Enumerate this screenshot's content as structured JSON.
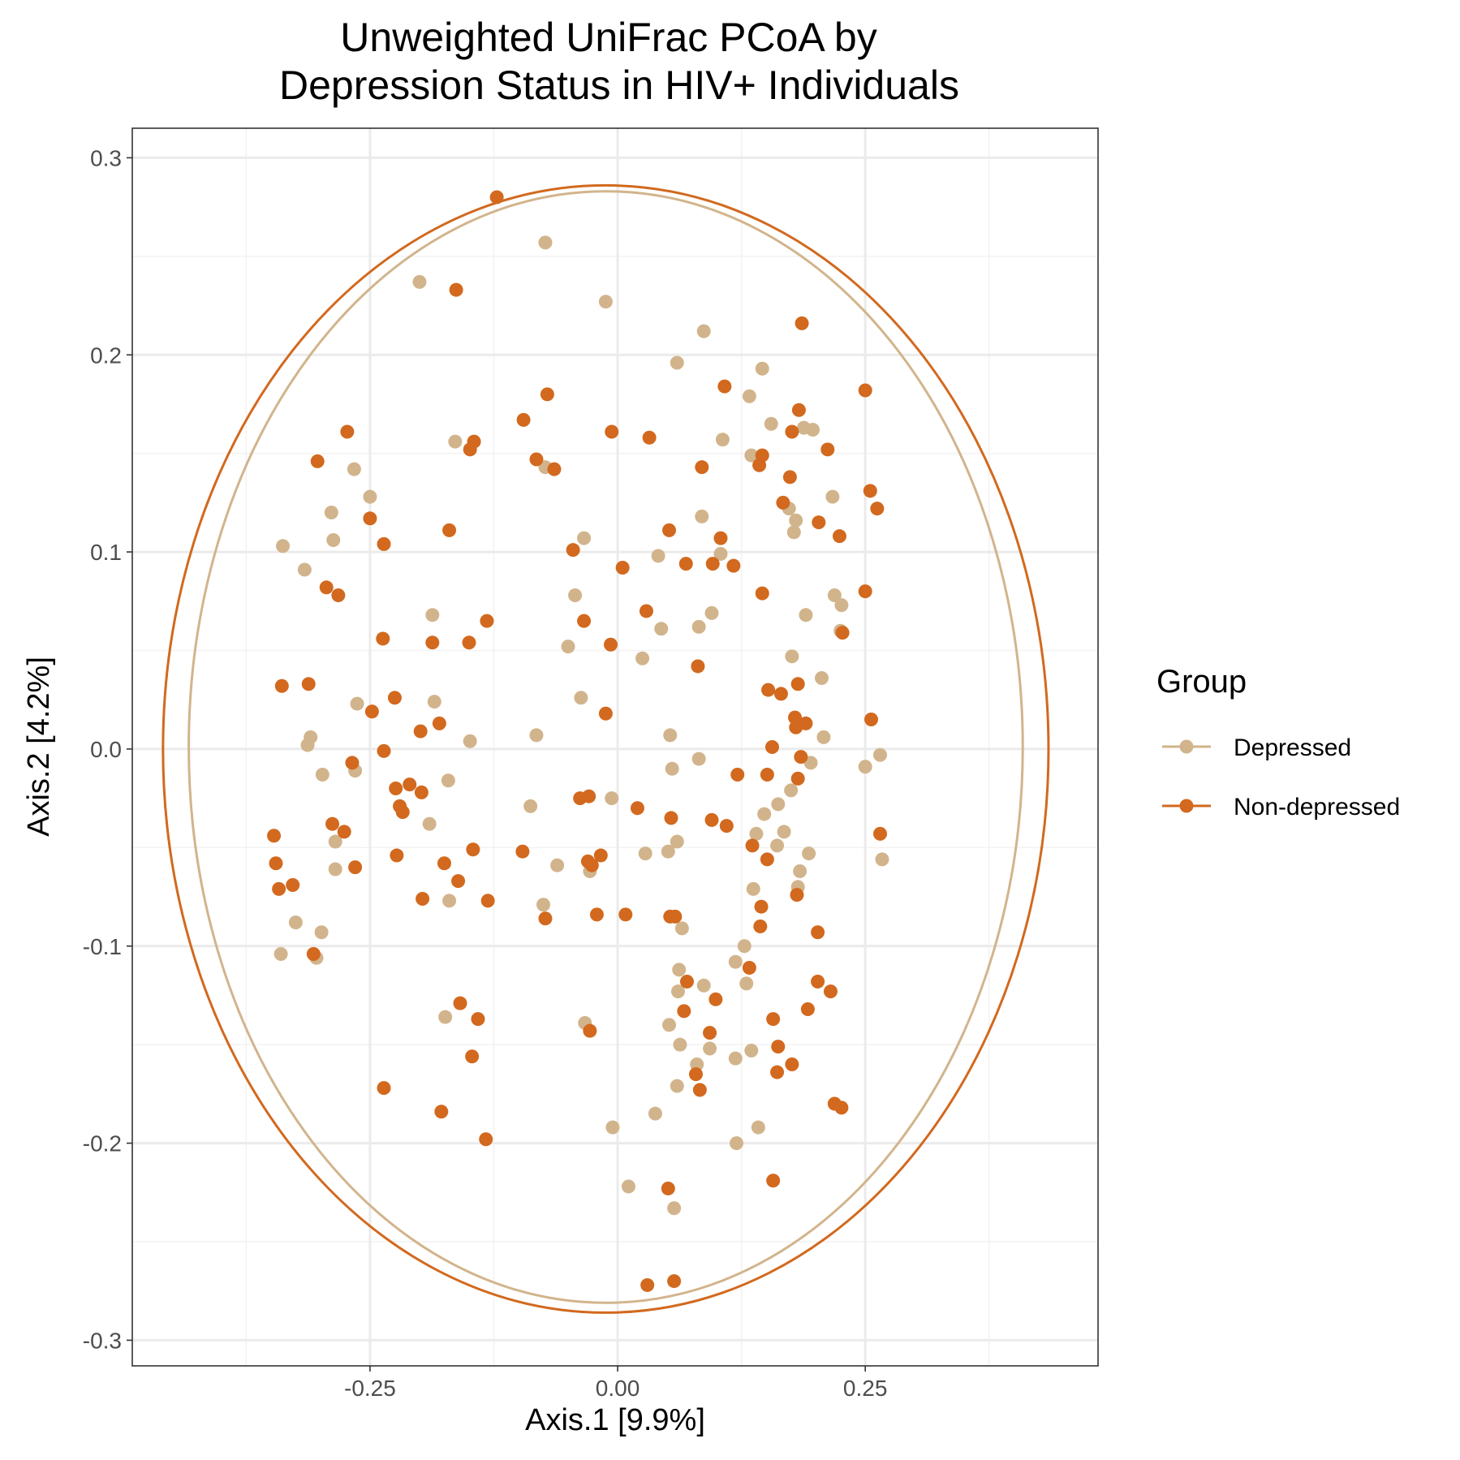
{
  "chart_data": {
    "type": "scatter",
    "title_lines": [
      "Unweighted UniFrac PCoA by",
      "Depression Status in HIV+ Individuals"
    ],
    "xlabel": "Axis.1   [9.9%]",
    "ylabel": "Axis.2   [4.2%]",
    "xlim": [
      -0.49,
      0.485
    ],
    "ylim": [
      -0.313,
      0.315
    ],
    "x_ticks": [
      -0.25,
      0.0,
      0.25
    ],
    "x_tick_labels": [
      "-0.25",
      "0.00",
      "0.25"
    ],
    "y_ticks": [
      -0.3,
      -0.2,
      -0.1,
      0.0,
      0.1,
      0.2,
      0.3
    ],
    "y_tick_labels": [
      "-0.3",
      "-0.2",
      "-0.1",
      "0.0",
      "0.1",
      "0.2",
      "0.3"
    ],
    "x_minor_ticks": [
      -0.375,
      -0.125,
      0.125,
      0.375
    ],
    "y_minor_ticks": [
      -0.25,
      -0.15,
      -0.05,
      0.05,
      0.15,
      0.25
    ],
    "grid": true,
    "legend": {
      "title": "Group",
      "position": "right",
      "entries": [
        "Depressed",
        "Non-depressed"
      ]
    },
    "series": [
      {
        "name": "Depressed",
        "color": "#D2B48C",
        "ellipse": {
          "cx": -0.012,
          "cy": 0.001,
          "rx": 0.421,
          "ry": 0.282
        },
        "points": [
          [
            -0.073,
            0.257
          ],
          [
            -0.2,
            0.237
          ],
          [
            -0.012,
            0.227
          ],
          [
            0.087,
            0.212
          ],
          [
            0.06,
            0.196
          ],
          [
            0.146,
            0.193
          ],
          [
            0.133,
            0.179
          ],
          [
            0.155,
            0.165
          ],
          [
            0.188,
            0.163
          ],
          [
            0.197,
            0.162
          ],
          [
            -0.164,
            0.156
          ],
          [
            0.106,
            0.157
          ],
          [
            0.135,
            0.149
          ],
          [
            -0.073,
            0.143
          ],
          [
            -0.266,
            0.142
          ],
          [
            0.173,
            0.122
          ],
          [
            0.18,
            0.116
          ],
          [
            -0.25,
            0.128
          ],
          [
            0.217,
            0.128
          ],
          [
            -0.289,
            0.12
          ],
          [
            0.085,
            0.118
          ],
          [
            -0.338,
            0.103
          ],
          [
            -0.287,
            0.106
          ],
          [
            0.178,
            0.11
          ],
          [
            -0.034,
            0.107
          ],
          [
            -0.316,
            0.091
          ],
          [
            0.041,
            0.098
          ],
          [
            0.104,
            0.099
          ],
          [
            -0.043,
            0.078
          ],
          [
            0.219,
            0.078
          ],
          [
            0.226,
            0.073
          ],
          [
            -0.187,
            0.068
          ],
          [
            0.095,
            0.069
          ],
          [
            0.19,
            0.068
          ],
          [
            0.044,
            0.061
          ],
          [
            0.082,
            0.062
          ],
          [
            0.225,
            0.06
          ],
          [
            -0.05,
            0.052
          ],
          [
            0.025,
            0.046
          ],
          [
            0.176,
            0.047
          ],
          [
            0.206,
            0.036
          ],
          [
            -0.037,
            0.026
          ],
          [
            -0.185,
            0.024
          ],
          [
            -0.263,
            0.023
          ],
          [
            -0.31,
            0.006
          ],
          [
            0.053,
            0.007
          ],
          [
            0.208,
            0.006
          ],
          [
            -0.082,
            0.007
          ],
          [
            -0.149,
            0.004
          ],
          [
            -0.313,
            0.002
          ],
          [
            0.265,
            -0.003
          ],
          [
            0.082,
            -0.005
          ],
          [
            0.195,
            -0.007
          ],
          [
            0.055,
            -0.01
          ],
          [
            0.25,
            -0.009
          ],
          [
            -0.265,
            -0.011
          ],
          [
            -0.298,
            -0.013
          ],
          [
            -0.171,
            -0.016
          ],
          [
            0.175,
            -0.021
          ],
          [
            -0.006,
            -0.025
          ],
          [
            -0.088,
            -0.029
          ],
          [
            0.162,
            -0.028
          ],
          [
            0.148,
            -0.033
          ],
          [
            -0.19,
            -0.038
          ],
          [
            0.168,
            -0.042
          ],
          [
            0.14,
            -0.043
          ],
          [
            -0.285,
            -0.047
          ],
          [
            0.06,
            -0.047
          ],
          [
            0.161,
            -0.049
          ],
          [
            0.193,
            -0.053
          ],
          [
            0.028,
            -0.053
          ],
          [
            0.051,
            -0.052
          ],
          [
            0.267,
            -0.056
          ],
          [
            -0.061,
            -0.059
          ],
          [
            -0.028,
            -0.062
          ],
          [
            0.184,
            -0.062
          ],
          [
            -0.285,
            -0.061
          ],
          [
            0.137,
            -0.071
          ],
          [
            0.182,
            -0.07
          ],
          [
            -0.17,
            -0.077
          ],
          [
            -0.075,
            -0.079
          ],
          [
            -0.325,
            -0.088
          ],
          [
            0.065,
            -0.091
          ],
          [
            -0.299,
            -0.093
          ],
          [
            0.128,
            -0.1
          ],
          [
            -0.34,
            -0.104
          ],
          [
            -0.304,
            -0.106
          ],
          [
            0.119,
            -0.108
          ],
          [
            0.062,
            -0.112
          ],
          [
            0.13,
            -0.119
          ],
          [
            0.087,
            -0.12
          ],
          [
            0.061,
            -0.123
          ],
          [
            -0.174,
            -0.136
          ],
          [
            -0.033,
            -0.139
          ],
          [
            0.052,
            -0.14
          ],
          [
            0.063,
            -0.15
          ],
          [
            0.093,
            -0.152
          ],
          [
            0.135,
            -0.153
          ],
          [
            0.119,
            -0.157
          ],
          [
            0.08,
            -0.16
          ],
          [
            0.06,
            -0.171
          ],
          [
            0.038,
            -0.185
          ],
          [
            -0.005,
            -0.192
          ],
          [
            0.142,
            -0.192
          ],
          [
            0.12,
            -0.2
          ],
          [
            0.011,
            -0.222
          ],
          [
            0.057,
            -0.233
          ]
        ]
      },
      {
        "name": "Non-depressed",
        "color": "#D2691E",
        "ellipse": {
          "cx": -0.012,
          "cy": 0.0,
          "rx": 0.447,
          "ry": 0.286
        },
        "points": [
          [
            -0.122,
            0.28
          ],
          [
            -0.163,
            0.233
          ],
          [
            0.186,
            0.216
          ],
          [
            0.25,
            0.182
          ],
          [
            0.108,
            0.184
          ],
          [
            -0.071,
            0.18
          ],
          [
            -0.095,
            0.167
          ],
          [
            -0.006,
            0.161
          ],
          [
            0.032,
            0.158
          ],
          [
            -0.273,
            0.161
          ],
          [
            0.183,
            0.172
          ],
          [
            0.176,
            0.161
          ],
          [
            -0.145,
            0.156
          ],
          [
            -0.149,
            0.152
          ],
          [
            0.146,
            0.149
          ],
          [
            0.212,
            0.152
          ],
          [
            -0.303,
            0.146
          ],
          [
            -0.082,
            0.147
          ],
          [
            -0.064,
            0.142
          ],
          [
            0.085,
            0.143
          ],
          [
            0.143,
            0.144
          ],
          [
            0.174,
            0.138
          ],
          [
            0.255,
            0.131
          ],
          [
            0.167,
            0.125
          ],
          [
            0.262,
            0.122
          ],
          [
            -0.25,
            0.117
          ],
          [
            0.203,
            0.115
          ],
          [
            0.052,
            0.111
          ],
          [
            -0.17,
            0.111
          ],
          [
            0.224,
            0.108
          ],
          [
            0.104,
            0.107
          ],
          [
            -0.236,
            0.104
          ],
          [
            -0.045,
            0.101
          ],
          [
            0.069,
            0.094
          ],
          [
            0.096,
            0.094
          ],
          [
            0.117,
            0.093
          ],
          [
            0.005,
            0.092
          ],
          [
            -0.294,
            0.082
          ],
          [
            -0.282,
            0.078
          ],
          [
            0.146,
            0.079
          ],
          [
            0.25,
            0.08
          ],
          [
            0.029,
            0.07
          ],
          [
            -0.132,
            0.065
          ],
          [
            -0.034,
            0.065
          ],
          [
            0.227,
            0.059
          ],
          [
            -0.237,
            0.056
          ],
          [
            -0.187,
            0.054
          ],
          [
            -0.15,
            0.054
          ],
          [
            -0.007,
            0.053
          ],
          [
            0.081,
            0.042
          ],
          [
            -0.339,
            0.032
          ],
          [
            -0.312,
            0.033
          ],
          [
            0.152,
            0.03
          ],
          [
            0.165,
            0.028
          ],
          [
            0.182,
            0.033
          ],
          [
            -0.225,
            0.026
          ],
          [
            -0.248,
            0.019
          ],
          [
            -0.012,
            0.018
          ],
          [
            0.256,
            0.015
          ],
          [
            0.179,
            0.016
          ],
          [
            0.18,
            0.011
          ],
          [
            0.19,
            0.013
          ],
          [
            -0.18,
            0.013
          ],
          [
            -0.199,
            0.009
          ],
          [
            0.156,
            0.001
          ],
          [
            -0.236,
            -0.001
          ],
          [
            0.185,
            -0.004
          ],
          [
            -0.268,
            -0.007
          ],
          [
            0.121,
            -0.013
          ],
          [
            0.151,
            -0.013
          ],
          [
            0.182,
            -0.015
          ],
          [
            -0.224,
            -0.02
          ],
          [
            -0.21,
            -0.018
          ],
          [
            -0.198,
            -0.022
          ],
          [
            -0.038,
            -0.025
          ],
          [
            -0.029,
            -0.024
          ],
          [
            -0.22,
            -0.029
          ],
          [
            -0.217,
            -0.032
          ],
          [
            0.02,
            -0.03
          ],
          [
            0.054,
            -0.035
          ],
          [
            0.095,
            -0.036
          ],
          [
            0.11,
            -0.039
          ],
          [
            -0.288,
            -0.038
          ],
          [
            -0.276,
            -0.042
          ],
          [
            -0.347,
            -0.044
          ],
          [
            0.265,
            -0.043
          ],
          [
            0.136,
            -0.049
          ],
          [
            -0.096,
            -0.052
          ],
          [
            -0.146,
            -0.051
          ],
          [
            0.151,
            -0.056
          ],
          [
            -0.223,
            -0.054
          ],
          [
            -0.017,
            -0.054
          ],
          [
            -0.03,
            -0.057
          ],
          [
            -0.345,
            -0.058
          ],
          [
            -0.175,
            -0.058
          ],
          [
            -0.026,
            -0.059
          ],
          [
            -0.265,
            -0.06
          ],
          [
            -0.161,
            -0.067
          ],
          [
            -0.328,
            -0.069
          ],
          [
            -0.342,
            -0.071
          ],
          [
            0.181,
            -0.074
          ],
          [
            -0.197,
            -0.076
          ],
          [
            -0.131,
            -0.077
          ],
          [
            0.145,
            -0.08
          ],
          [
            -0.021,
            -0.084
          ],
          [
            0.008,
            -0.084
          ],
          [
            0.053,
            -0.085
          ],
          [
            0.058,
            -0.085
          ],
          [
            -0.073,
            -0.086
          ],
          [
            0.144,
            -0.09
          ],
          [
            0.202,
            -0.093
          ],
          [
            -0.307,
            -0.104
          ],
          [
            0.133,
            -0.111
          ],
          [
            0.202,
            -0.118
          ],
          [
            0.215,
            -0.123
          ],
          [
            0.07,
            -0.118
          ],
          [
            0.099,
            -0.127
          ],
          [
            -0.159,
            -0.129
          ],
          [
            0.067,
            -0.133
          ],
          [
            0.192,
            -0.132
          ],
          [
            -0.141,
            -0.137
          ],
          [
            0.157,
            -0.137
          ],
          [
            -0.028,
            -0.143
          ],
          [
            0.093,
            -0.144
          ],
          [
            -0.147,
            -0.156
          ],
          [
            0.162,
            -0.151
          ],
          [
            0.176,
            -0.16
          ],
          [
            0.161,
            -0.164
          ],
          [
            0.079,
            -0.165
          ],
          [
            -0.236,
            -0.172
          ],
          [
            0.083,
            -0.173
          ],
          [
            0.219,
            -0.18
          ],
          [
            0.226,
            -0.182
          ],
          [
            -0.178,
            -0.184
          ],
          [
            -0.133,
            -0.198
          ],
          [
            0.157,
            -0.219
          ],
          [
            0.051,
            -0.223
          ],
          [
            0.03,
            -0.272
          ],
          [
            0.057,
            -0.27
          ]
        ]
      }
    ]
  }
}
